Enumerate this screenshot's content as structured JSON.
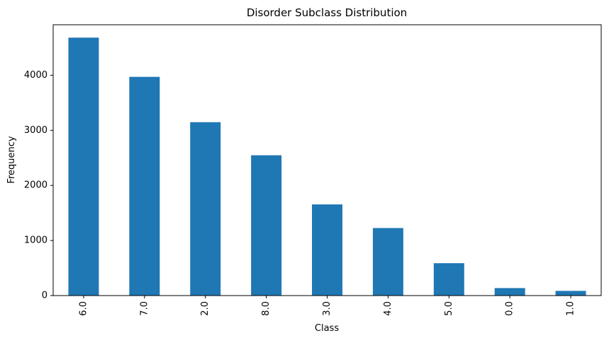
{
  "chart_data": {
    "type": "bar",
    "title": "Disorder Subclass Distribution",
    "xlabel": "Class",
    "ylabel": "Frequency",
    "categories": [
      "6.0",
      "7.0",
      "2.0",
      "8.0",
      "3.0",
      "4.0",
      "5.0",
      "0.0",
      "1.0"
    ],
    "values": [
      4683,
      3971,
      3148,
      2547,
      1655,
      1226,
      588,
      136,
      85
    ],
    "ylim": [
      0,
      4917
    ],
    "yticks": [
      "0",
      "1000",
      "2000",
      "3000",
      "4000"
    ],
    "bar_color": "#1f77b4",
    "grid": false,
    "legend": false
  }
}
